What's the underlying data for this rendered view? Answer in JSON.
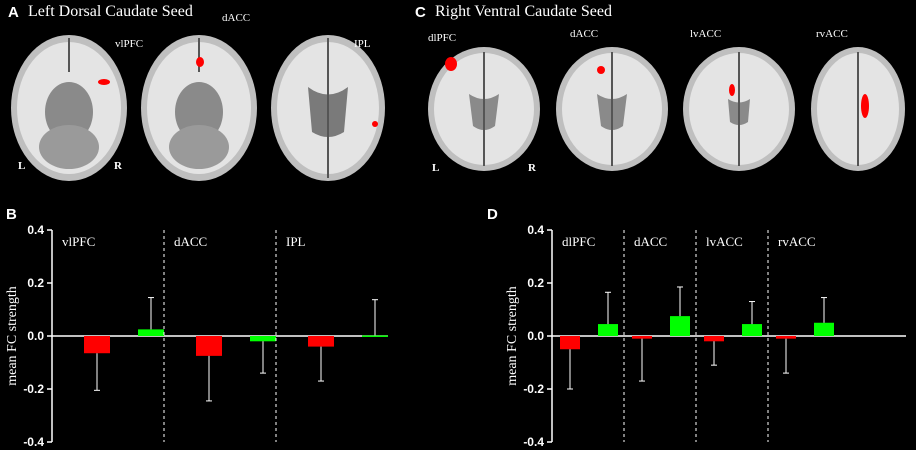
{
  "panels": {
    "a": {
      "letter": "A",
      "title": "Left Dorsal Caudate Seed"
    },
    "b": {
      "letter": "B"
    },
    "c": {
      "letter": "C",
      "title": "Right Ventral Caudate Seed"
    },
    "d": {
      "letter": "D"
    }
  },
  "brain_labels": {
    "a1": "vlPFC",
    "a2": "dACC",
    "a3": "IPL",
    "c1": "dlPFC",
    "c2": "dACC",
    "c3": "lvACC",
    "c4": "rvACC"
  },
  "orientation": {
    "a_left": "L",
    "a_right": "R",
    "c_left": "L",
    "c_right": "R"
  },
  "colors": {
    "group1": "#ff0000",
    "group2": "#00ff00",
    "axis": "#ffffff",
    "background": "#000000"
  },
  "chart_data": [
    {
      "type": "bar",
      "panel": "B",
      "ylabel": "mean FC strength",
      "ylim": [
        -0.4,
        0.4
      ],
      "yticks": [
        "0.4",
        "0.2",
        "0.0",
        "-0.2",
        "-0.4"
      ],
      "region_labels": [
        "vlPFC",
        "dACC",
        "IPL"
      ],
      "series": [
        {
          "color": "#ff0000",
          "values": [
            -0.065,
            -0.075,
            -0.04
          ],
          "errors": [
            0.14,
            0.17,
            0.13
          ]
        },
        {
          "color": "#00ff00",
          "values": [
            0.025,
            -0.02,
            0.002
          ],
          "errors": [
            0.12,
            0.12,
            0.135
          ]
        }
      ]
    },
    {
      "type": "bar",
      "panel": "D",
      "ylabel": "mean FC strength",
      "ylim": [
        -0.4,
        0.4
      ],
      "yticks": [
        "0.4",
        "0.2",
        "0.0",
        "-0.2",
        "-0.4"
      ],
      "region_labels": [
        "dlPFC",
        "dACC",
        "lvACC",
        "rvACC"
      ],
      "series": [
        {
          "color": "#ff0000",
          "values": [
            -0.05,
            -0.01,
            -0.02,
            -0.01
          ],
          "errors": [
            0.15,
            0.16,
            0.09,
            0.13
          ]
        },
        {
          "color": "#00ff00",
          "values": [
            0.045,
            0.075,
            0.045,
            0.05
          ],
          "errors": [
            0.12,
            0.11,
            0.085,
            0.095
          ]
        }
      ]
    }
  ]
}
